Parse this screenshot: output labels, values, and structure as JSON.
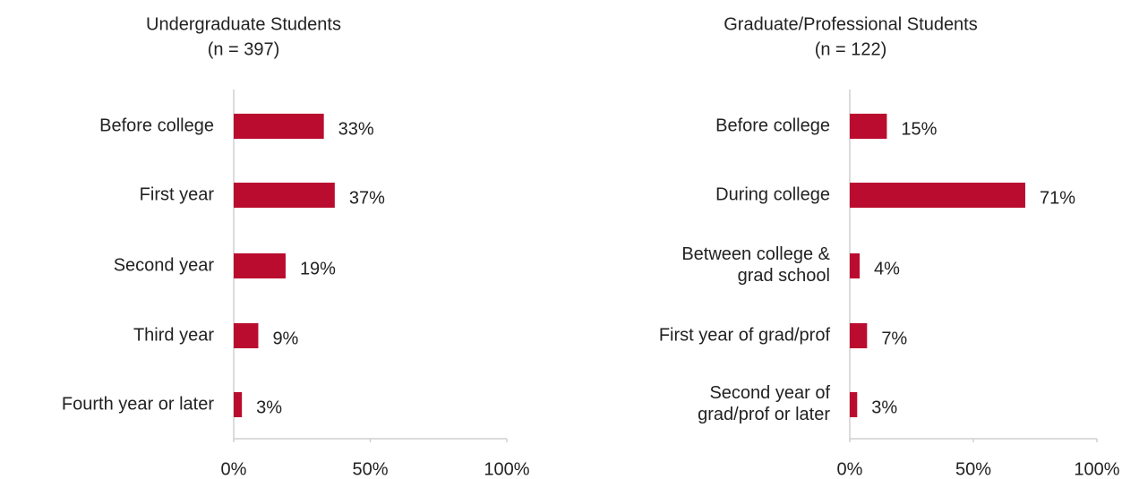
{
  "chart_data": [
    {
      "type": "bar",
      "orientation": "horizontal",
      "title": "Undergraduate Students",
      "subtitle": "(n = 397)",
      "categories": [
        "Before college",
        "First year",
        "Second year",
        "Third year",
        "Fourth year or later"
      ],
      "values": [
        33,
        37,
        19,
        9,
        3
      ],
      "value_labels": [
        "33%",
        "37%",
        "19%",
        "9%",
        "3%"
      ],
      "color": "#ba0c2f",
      "xlim": [
        0,
        100
      ],
      "xticks": [
        {
          "value": 0,
          "label": "0%"
        },
        {
          "value": 50,
          "label": "50%"
        },
        {
          "value": 100,
          "label": "100%"
        }
      ]
    },
    {
      "type": "bar",
      "orientation": "horizontal",
      "title": "Graduate/Professional Students",
      "subtitle": "(n = 122)",
      "categories": [
        "Before college",
        "During college",
        "Between college &\ngrad school",
        "First year of grad/prof",
        "Second year of\ngrad/prof or later"
      ],
      "values": [
        15,
        71,
        4,
        7,
        3
      ],
      "value_labels": [
        "15%",
        "71%",
        "4%",
        "7%",
        "3%"
      ],
      "color": "#ba0c2f",
      "xlim": [
        0,
        100
      ],
      "xticks": [
        {
          "value": 0,
          "label": "0%"
        },
        {
          "value": 50,
          "label": "50%"
        },
        {
          "value": 100,
          "label": "100%"
        }
      ]
    }
  ]
}
